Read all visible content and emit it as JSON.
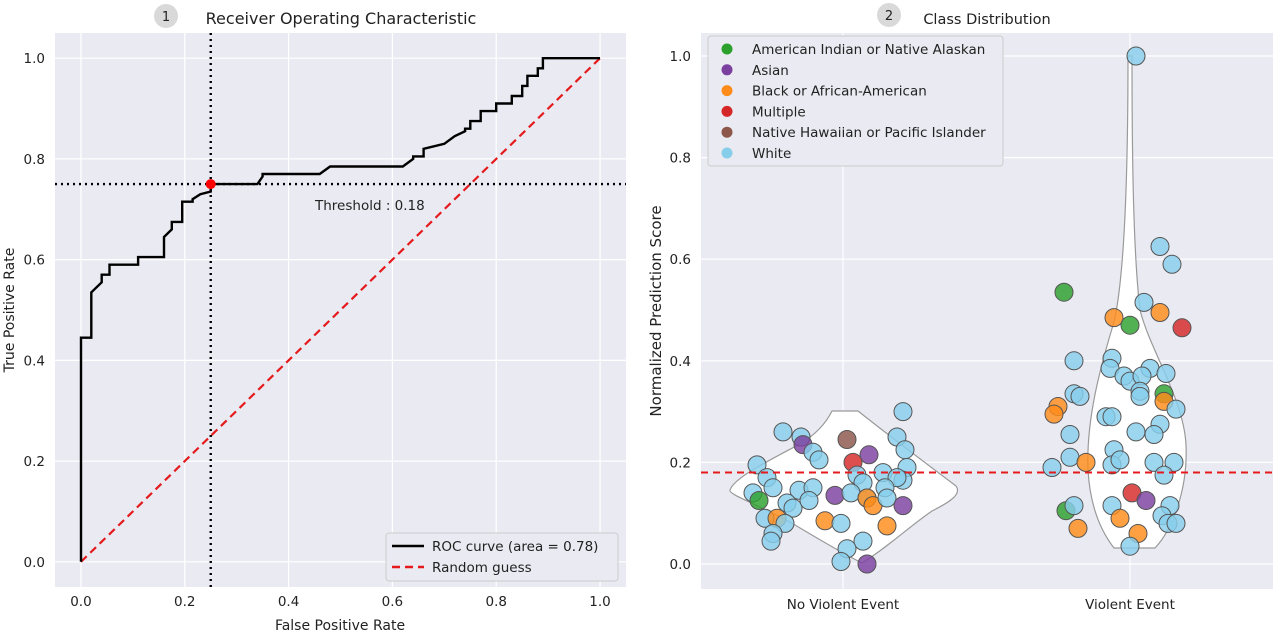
{
  "chart_data": [
    {
      "type": "line",
      "badge": "1",
      "title": "Receiver Operating Characteristic",
      "xlabel": "False Positive Rate",
      "ylabel": "True Positive Rate",
      "xlim": [
        -0.05,
        1.05
      ],
      "ylim": [
        -0.05,
        1.05
      ],
      "xticks": [
        "0.0",
        "0.2",
        "0.4",
        "0.6",
        "0.8",
        "1.0"
      ],
      "yticks": [
        "0.0",
        "0.2",
        "0.4",
        "0.6",
        "0.8",
        "1.0"
      ],
      "grid": true,
      "legend_position": "lower-right",
      "series": [
        {
          "name": "ROC curve (area = 0.78)",
          "color": "#000000",
          "x": [
            0.0,
            0.0,
            0.02,
            0.02,
            0.04,
            0.04,
            0.055,
            0.055,
            0.11,
            0.11,
            0.16,
            0.16,
            0.175,
            0.175,
            0.195,
            0.195,
            0.215,
            0.215,
            0.23,
            0.25,
            0.25,
            0.34,
            0.35,
            0.35,
            0.46,
            0.48,
            0.48,
            0.62,
            0.64,
            0.64,
            0.66,
            0.66,
            0.7,
            0.72,
            0.74,
            0.74,
            0.75,
            0.75,
            0.77,
            0.77,
            0.8,
            0.8,
            0.83,
            0.83,
            0.85,
            0.85,
            0.86,
            0.86,
            0.88,
            0.88,
            0.89,
            0.89,
            0.95,
            0.95,
            1.0
          ],
          "y": [
            0.0,
            0.445,
            0.445,
            0.535,
            0.555,
            0.57,
            0.57,
            0.59,
            0.59,
            0.605,
            0.605,
            0.645,
            0.66,
            0.675,
            0.675,
            0.715,
            0.715,
            0.72,
            0.73,
            0.735,
            0.75,
            0.75,
            0.765,
            0.77,
            0.77,
            0.785,
            0.785,
            0.785,
            0.8,
            0.805,
            0.805,
            0.82,
            0.83,
            0.845,
            0.855,
            0.86,
            0.86,
            0.875,
            0.875,
            0.895,
            0.895,
            0.91,
            0.91,
            0.925,
            0.925,
            0.945,
            0.945,
            0.965,
            0.965,
            0.98,
            0.98,
            1.0,
            1.0,
            1.0,
            1.0
          ]
        },
        {
          "name": "Random guess",
          "color": "#e41a1c",
          "dashed": true,
          "x": [
            0.0,
            1.0
          ],
          "y": [
            0.0,
            1.0
          ]
        }
      ],
      "operating_point": {
        "x": 0.25,
        "y": 0.75,
        "color": "#ff0000"
      },
      "annotation": "Threshold : 0.18"
    },
    {
      "type": "scatter",
      "badge": "2",
      "title": "Class Distribution",
      "xlabel": "",
      "ylabel": "Normalized Prediction Score",
      "categories": [
        "No Violent Event",
        "Violent Event"
      ],
      "ylim": [
        -0.05,
        1.05
      ],
      "yticks": [
        "0.0",
        "0.2",
        "0.4",
        "0.6",
        "0.8",
        "1.0"
      ],
      "grid": true,
      "legend_position": "top-left",
      "threshold_line": {
        "y": 0.18,
        "color": "#e41a1c"
      },
      "groups": [
        {
          "name": "American Indian or Native Alaskan",
          "color": "#2ca02c"
        },
        {
          "name": "Asian",
          "color": "#7b3fa0"
        },
        {
          "name": "Black or African-American",
          "color": "#ff8c1a"
        },
        {
          "name": "Multiple",
          "color": "#d62728"
        },
        {
          "name": "Native Hawaiian or Pacific Islander",
          "color": "#8c564b"
        },
        {
          "name": "White",
          "color": "#87ceeb"
        }
      ],
      "points": [
        {
          "c": 0,
          "g": 5,
          "x": -0.3,
          "y": 0.26
        },
        {
          "c": 0,
          "g": 5,
          "x": -0.21,
          "y": 0.25
        },
        {
          "c": 0,
          "g": 1,
          "x": -0.2,
          "y": 0.235
        },
        {
          "c": 0,
          "g": 5,
          "x": -0.15,
          "y": 0.22
        },
        {
          "c": 0,
          "g": 5,
          "x": -0.12,
          "y": 0.205
        },
        {
          "c": 0,
          "g": 4,
          "x": 0.02,
          "y": 0.245
        },
        {
          "c": 0,
          "g": 1,
          "x": 0.13,
          "y": 0.215
        },
        {
          "c": 0,
          "g": 5,
          "x": 0.3,
          "y": 0.3
        },
        {
          "c": 0,
          "g": 5,
          "x": 0.27,
          "y": 0.25
        },
        {
          "c": 0,
          "g": 5,
          "x": 0.31,
          "y": 0.225
        },
        {
          "c": 0,
          "g": 5,
          "x": -0.43,
          "y": 0.195
        },
        {
          "c": 0,
          "g": 5,
          "x": -0.38,
          "y": 0.17
        },
        {
          "c": 0,
          "g": 5,
          "x": -0.35,
          "y": 0.15
        },
        {
          "c": 0,
          "g": 5,
          "x": -0.22,
          "y": 0.145
        },
        {
          "c": 0,
          "g": 5,
          "x": -0.15,
          "y": 0.15
        },
        {
          "c": 0,
          "g": 3,
          "x": 0.05,
          "y": 0.2
        },
        {
          "c": 0,
          "g": 5,
          "x": 0.07,
          "y": 0.175
        },
        {
          "c": 0,
          "g": 5,
          "x": 0.1,
          "y": 0.16
        },
        {
          "c": 0,
          "g": 5,
          "x": 0.2,
          "y": 0.18
        },
        {
          "c": 0,
          "g": 5,
          "x": 0.32,
          "y": 0.19
        },
        {
          "c": 0,
          "g": 5,
          "x": 0.3,
          "y": 0.165
        },
        {
          "c": 0,
          "g": 5,
          "x": 0.27,
          "y": 0.17
        },
        {
          "c": 0,
          "g": 5,
          "x": 0.21,
          "y": 0.15
        },
        {
          "c": 0,
          "g": 5,
          "x": -0.45,
          "y": 0.14
        },
        {
          "c": 0,
          "g": 0,
          "x": -0.42,
          "y": 0.125
        },
        {
          "c": 0,
          "g": 5,
          "x": -0.28,
          "y": 0.12
        },
        {
          "c": 0,
          "g": 5,
          "x": -0.25,
          "y": 0.11
        },
        {
          "c": 0,
          "g": 5,
          "x": -0.17,
          "y": 0.125
        },
        {
          "c": 0,
          "g": 1,
          "x": -0.04,
          "y": 0.135
        },
        {
          "c": 0,
          "g": 5,
          "x": 0.04,
          "y": 0.14
        },
        {
          "c": 0,
          "g": 5,
          "x": 0.12,
          "y": 0.13
        },
        {
          "c": 0,
          "g": 2,
          "x": 0.12,
          "y": 0.13
        },
        {
          "c": 0,
          "g": 2,
          "x": 0.15,
          "y": 0.115
        },
        {
          "c": 0,
          "g": 5,
          "x": 0.22,
          "y": 0.13
        },
        {
          "c": 0,
          "g": 1,
          "x": 0.3,
          "y": 0.115
        },
        {
          "c": 0,
          "g": 5,
          "x": -0.39,
          "y": 0.09
        },
        {
          "c": 0,
          "g": 2,
          "x": -0.33,
          "y": 0.09
        },
        {
          "c": 0,
          "g": 5,
          "x": -0.29,
          "y": 0.08
        },
        {
          "c": 0,
          "g": 2,
          "x": -0.09,
          "y": 0.085
        },
        {
          "c": 0,
          "g": 5,
          "x": -0.01,
          "y": 0.08
        },
        {
          "c": 0,
          "g": 2,
          "x": 0.22,
          "y": 0.075
        },
        {
          "c": 0,
          "g": 5,
          "x": -0.35,
          "y": 0.06
        },
        {
          "c": 0,
          "g": 5,
          "x": -0.36,
          "y": 0.045
        },
        {
          "c": 0,
          "g": 5,
          "x": 0.1,
          "y": 0.045
        },
        {
          "c": 0,
          "g": 5,
          "x": 0.02,
          "y": 0.03
        },
        {
          "c": 0,
          "g": 5,
          "x": -0.01,
          "y": 0.005
        },
        {
          "c": 0,
          "g": 1,
          "x": 0.12,
          "y": 0.0
        },
        {
          "c": 1,
          "g": 5,
          "x": 0.03,
          "y": 1.0
        },
        {
          "c": 1,
          "g": 5,
          "x": 0.15,
          "y": 0.625
        },
        {
          "c": 1,
          "g": 5,
          "x": 0.21,
          "y": 0.59
        },
        {
          "c": 1,
          "g": 0,
          "x": -0.33,
          "y": 0.535
        },
        {
          "c": 1,
          "g": 5,
          "x": 0.07,
          "y": 0.515
        },
        {
          "c": 1,
          "g": 2,
          "x": -0.08,
          "y": 0.485
        },
        {
          "c": 1,
          "g": 2,
          "x": 0.15,
          "y": 0.495
        },
        {
          "c": 1,
          "g": 0,
          "x": 0.0,
          "y": 0.47
        },
        {
          "c": 1,
          "g": 3,
          "x": 0.26,
          "y": 0.465
        },
        {
          "c": 1,
          "g": 5,
          "x": -0.28,
          "y": 0.4
        },
        {
          "c": 1,
          "g": 5,
          "x": -0.09,
          "y": 0.405
        },
        {
          "c": 1,
          "g": 5,
          "x": -0.1,
          "y": 0.385
        },
        {
          "c": 1,
          "g": 5,
          "x": -0.03,
          "y": 0.37
        },
        {
          "c": 1,
          "g": 5,
          "x": 0.0,
          "y": 0.36
        },
        {
          "c": 1,
          "g": 5,
          "x": 0.1,
          "y": 0.385
        },
        {
          "c": 1,
          "g": 5,
          "x": 0.18,
          "y": 0.375
        },
        {
          "c": 1,
          "g": 5,
          "x": 0.06,
          "y": 0.37
        },
        {
          "c": 1,
          "g": 5,
          "x": -0.28,
          "y": 0.335
        },
        {
          "c": 1,
          "g": 5,
          "x": -0.25,
          "y": 0.33
        },
        {
          "c": 1,
          "g": 5,
          "x": 0.05,
          "y": 0.34
        },
        {
          "c": 1,
          "g": 5,
          "x": 0.05,
          "y": 0.33
        },
        {
          "c": 1,
          "g": 0,
          "x": 0.17,
          "y": 0.335
        },
        {
          "c": 1,
          "g": 2,
          "x": 0.17,
          "y": 0.32
        },
        {
          "c": 1,
          "g": 2,
          "x": -0.36,
          "y": 0.31
        },
        {
          "c": 1,
          "g": 2,
          "x": -0.38,
          "y": 0.295
        },
        {
          "c": 1,
          "g": 5,
          "x": -0.12,
          "y": 0.29
        },
        {
          "c": 1,
          "g": 5,
          "x": -0.09,
          "y": 0.29
        },
        {
          "c": 1,
          "g": 5,
          "x": 0.23,
          "y": 0.305
        },
        {
          "c": 1,
          "g": 5,
          "x": 0.15,
          "y": 0.275
        },
        {
          "c": 1,
          "g": 5,
          "x": 0.12,
          "y": 0.255
        },
        {
          "c": 1,
          "g": 5,
          "x": 0.03,
          "y": 0.26
        },
        {
          "c": 1,
          "g": 5,
          "x": -0.3,
          "y": 0.255
        },
        {
          "c": 1,
          "g": 5,
          "x": -0.08,
          "y": 0.225
        },
        {
          "c": 1,
          "g": 5,
          "x": -0.3,
          "y": 0.21
        },
        {
          "c": 1,
          "g": 5,
          "x": -0.39,
          "y": 0.19
        },
        {
          "c": 1,
          "g": 2,
          "x": -0.22,
          "y": 0.2
        },
        {
          "c": 1,
          "g": 5,
          "x": -0.09,
          "y": 0.195
        },
        {
          "c": 1,
          "g": 5,
          "x": -0.05,
          "y": 0.205
        },
        {
          "c": 1,
          "g": 5,
          "x": 0.12,
          "y": 0.2
        },
        {
          "c": 1,
          "g": 5,
          "x": 0.22,
          "y": 0.2
        },
        {
          "c": 1,
          "g": 5,
          "x": 0.17,
          "y": 0.175
        },
        {
          "c": 1,
          "g": 3,
          "x": 0.01,
          "y": 0.14
        },
        {
          "c": 1,
          "g": 1,
          "x": 0.08,
          "y": 0.125
        },
        {
          "c": 1,
          "g": 0,
          "x": -0.32,
          "y": 0.105
        },
        {
          "c": 1,
          "g": 5,
          "x": -0.28,
          "y": 0.115
        },
        {
          "c": 1,
          "g": 5,
          "x": -0.09,
          "y": 0.115
        },
        {
          "c": 1,
          "g": 5,
          "x": 0.2,
          "y": 0.115
        },
        {
          "c": 1,
          "g": 2,
          "x": -0.05,
          "y": 0.09
        },
        {
          "c": 1,
          "g": 5,
          "x": 0.16,
          "y": 0.095
        },
        {
          "c": 1,
          "g": 5,
          "x": 0.19,
          "y": 0.08
        },
        {
          "c": 1,
          "g": 5,
          "x": 0.23,
          "y": 0.08
        },
        {
          "c": 1,
          "g": 2,
          "x": -0.26,
          "y": 0.07
        },
        {
          "c": 1,
          "g": 2,
          "x": 0.04,
          "y": 0.06
        },
        {
          "c": 1,
          "g": 5,
          "x": 0.0,
          "y": 0.035
        }
      ]
    }
  ]
}
